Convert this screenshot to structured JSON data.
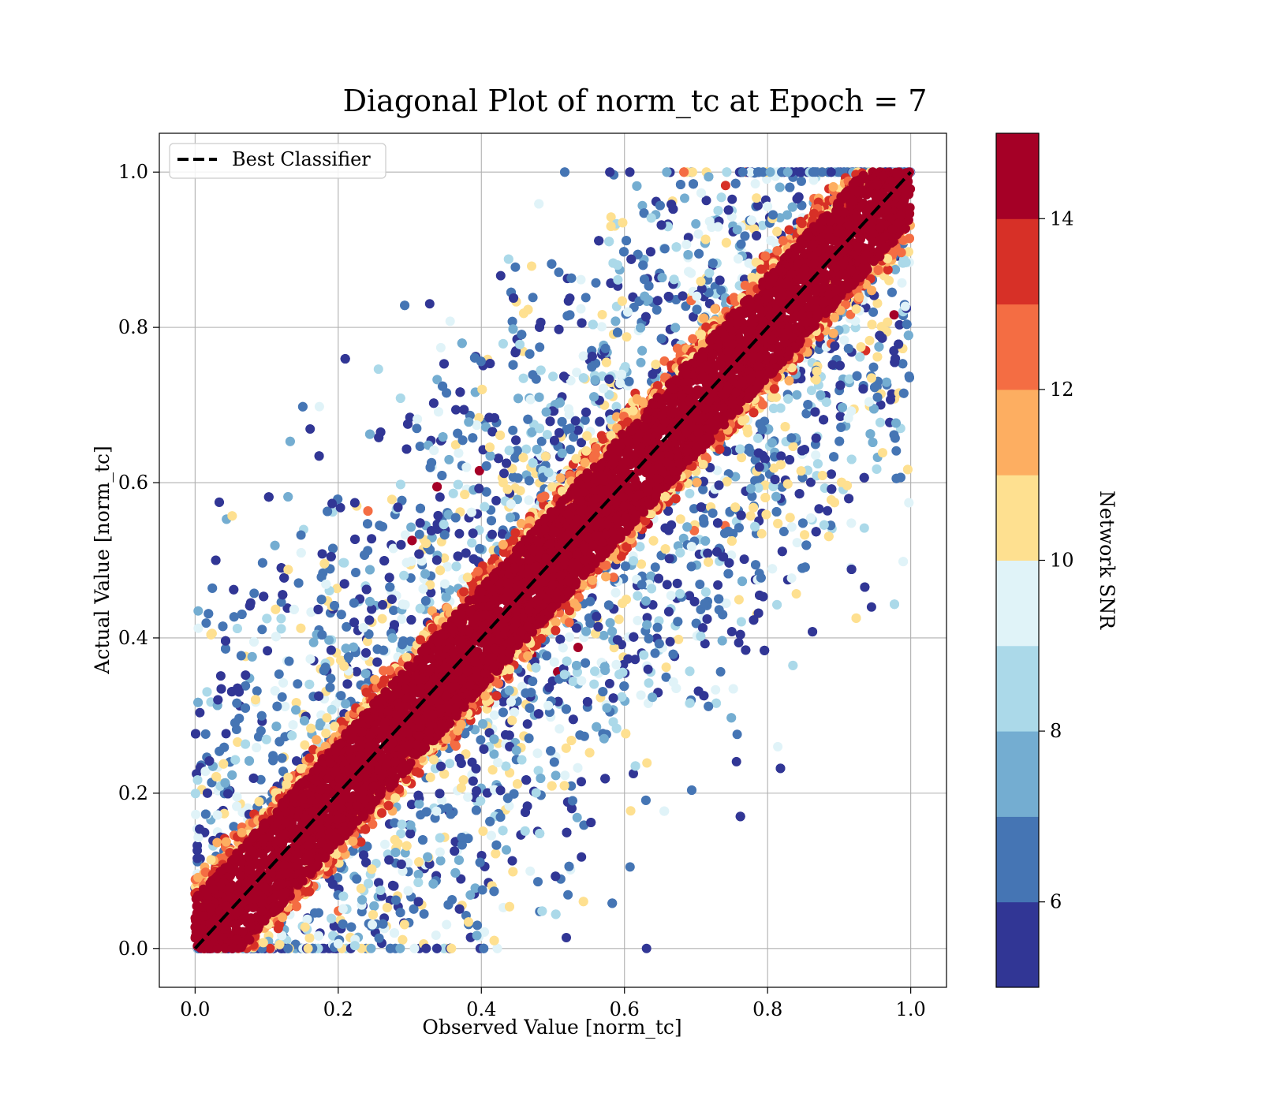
{
  "chart_data": {
    "type": "scatter",
    "title": "Diagonal Plot of norm_tc at Epoch = 7",
    "xlabel": "Observed Value [norm_tc]",
    "ylabel": "Actual Value [norm_tc]",
    "xlim": [
      -0.05,
      1.05
    ],
    "ylim": [
      -0.05,
      1.05
    ],
    "xticks": [
      "0.0",
      "0.2",
      "0.4",
      "0.6",
      "0.8",
      "1.0"
    ],
    "yticks": [
      "0.0",
      "0.2",
      "0.4",
      "0.6",
      "0.8",
      "1.0"
    ],
    "grid": true,
    "legend": {
      "position": "top-left",
      "entries": [
        "Best Classifier"
      ]
    },
    "diagonal_line": {
      "x": [
        0,
        1
      ],
      "y": [
        0,
        1
      ],
      "style": "dashed",
      "color": "#000000"
    },
    "colorbar": {
      "label": "Network SNR",
      "range": [
        5,
        15
      ],
      "ticks": [
        "6",
        "8",
        "10",
        "12",
        "14"
      ],
      "tick_values": [
        6,
        8,
        10,
        12,
        14
      ],
      "colors": [
        "#313695",
        "#4575b4",
        "#74add1",
        "#abd9e9",
        "#e0f3f8",
        "#fee090",
        "#fdae61",
        "#f46d43",
        "#d73027",
        "#a50026"
      ]
    },
    "data_description_note": "",
    "band": {
      "core_color": "#a50026",
      "edge_colors": [
        "#d73027",
        "#f46d43",
        "#fdae61",
        "#fee090"
      ]
    },
    "scatter_colors": [
      "#313695",
      "#4575b4",
      "#74add1",
      "#abd9e9",
      "#e0f3f8",
      "#fee090",
      "#f46d43",
      "#d73027",
      "#a50026"
    ]
  }
}
